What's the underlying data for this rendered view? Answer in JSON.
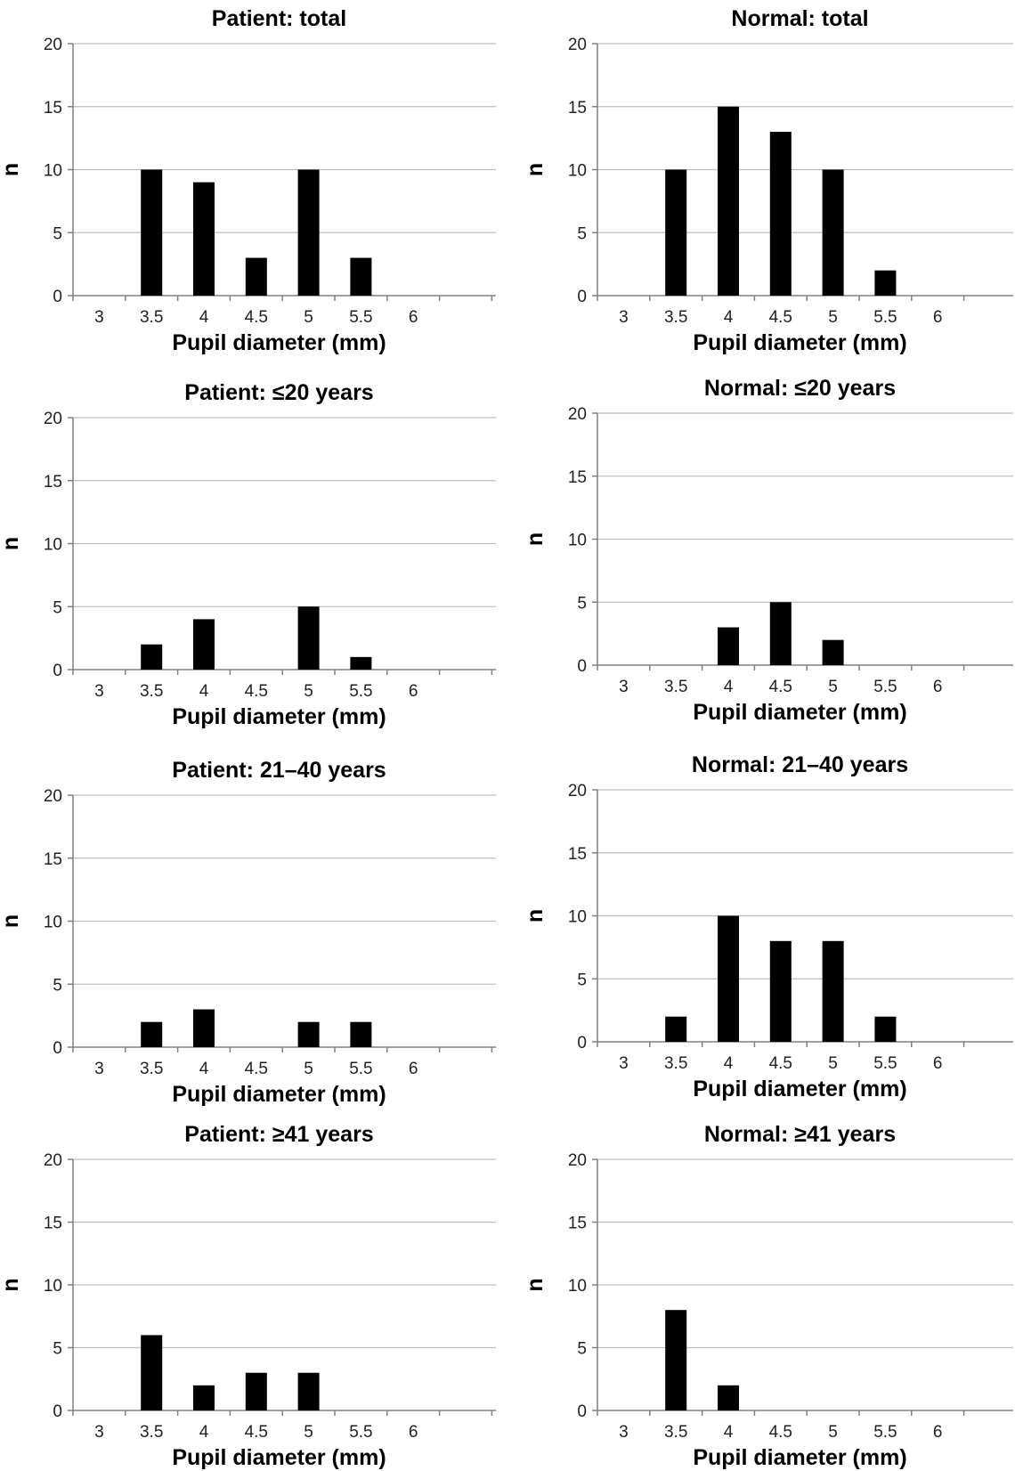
{
  "chart_data": [
    {
      "type": "bar",
      "title": "Patient: total",
      "xlabel": "Pupil diameter (mm)",
      "ylabel": "n",
      "categories": [
        "3",
        "3.5",
        "4",
        "4.5",
        "5",
        "5.5",
        "6"
      ],
      "values": [
        0,
        10,
        9,
        3,
        10,
        3,
        0
      ],
      "ylim": [
        0,
        20
      ],
      "yticks": [
        0,
        5,
        10,
        15,
        20
      ],
      "grid": true,
      "bar_color": "#000000"
    },
    {
      "type": "bar",
      "title": "Normal: total",
      "xlabel": "Pupil diameter (mm)",
      "ylabel": "n",
      "categories": [
        "3",
        "3.5",
        "4",
        "4.5",
        "5",
        "5.5",
        "6"
      ],
      "values": [
        0,
        10,
        15,
        13,
        10,
        2,
        0
      ],
      "ylim": [
        0,
        20
      ],
      "yticks": [
        0,
        5,
        10,
        15,
        20
      ],
      "grid": true,
      "bar_color": "#000000"
    },
    {
      "type": "bar",
      "title": "Patient: ≤20 years",
      "xlabel": "Pupil diameter (mm)",
      "ylabel": "n",
      "categories": [
        "3",
        "3.5",
        "4",
        "4.5",
        "5",
        "5.5",
        "6"
      ],
      "values": [
        0,
        2,
        4,
        0,
        5,
        1,
        0
      ],
      "ylim": [
        0,
        20
      ],
      "yticks": [
        0,
        5,
        10,
        15,
        20
      ],
      "grid": true,
      "bar_color": "#000000"
    },
    {
      "type": "bar",
      "title": "Normal: ≤20 years",
      "xlabel": "Pupil diameter (mm)",
      "ylabel": "n",
      "categories": [
        "3",
        "3.5",
        "4",
        "4.5",
        "5",
        "5.5",
        "6"
      ],
      "values": [
        0,
        0,
        3,
        5,
        2,
        0,
        0
      ],
      "ylim": [
        0,
        20
      ],
      "yticks": [
        0,
        5,
        10,
        15,
        20
      ],
      "grid": true,
      "bar_color": "#000000"
    },
    {
      "type": "bar",
      "title": "Patient: 21–40 years",
      "xlabel": "Pupil diameter (mm)",
      "ylabel": "n",
      "categories": [
        "3",
        "3.5",
        "4",
        "4.5",
        "5",
        "5.5",
        "6"
      ],
      "values": [
        0,
        2,
        3,
        0,
        2,
        2,
        0
      ],
      "ylim": [
        0,
        20
      ],
      "yticks": [
        0,
        5,
        10,
        15,
        20
      ],
      "grid": true,
      "bar_color": "#000000"
    },
    {
      "type": "bar",
      "title": "Normal: 21–40 years",
      "xlabel": "Pupil diameter (mm)",
      "ylabel": "n",
      "categories": [
        "3",
        "3.5",
        "4",
        "4.5",
        "5",
        "5.5",
        "6"
      ],
      "values": [
        0,
        2,
        10,
        8,
        8,
        2,
        0
      ],
      "ylim": [
        0,
        20
      ],
      "yticks": [
        0,
        5,
        10,
        15,
        20
      ],
      "grid": true,
      "bar_color": "#000000"
    },
    {
      "type": "bar",
      "title": "Patient: ≥41 years",
      "xlabel": "Pupil diameter (mm)",
      "ylabel": "n",
      "categories": [
        "3",
        "3.5",
        "4",
        "4.5",
        "5",
        "5.5",
        "6"
      ],
      "values": [
        0,
        6,
        2,
        3,
        3,
        0,
        0
      ],
      "ylim": [
        0,
        20
      ],
      "yticks": [
        0,
        5,
        10,
        15,
        20
      ],
      "grid": true,
      "bar_color": "#000000"
    },
    {
      "type": "bar",
      "title": "Normal: ≥41 years",
      "xlabel": "Pupil diameter (mm)",
      "ylabel": "n",
      "categories": [
        "3",
        "3.5",
        "4",
        "4.5",
        "5",
        "5.5",
        "6"
      ],
      "values": [
        0,
        8,
        2,
        0,
        0,
        0,
        0
      ],
      "ylim": [
        0,
        20
      ],
      "yticks": [
        0,
        5,
        10,
        15,
        20
      ],
      "grid": true,
      "bar_color": "#000000"
    }
  ]
}
